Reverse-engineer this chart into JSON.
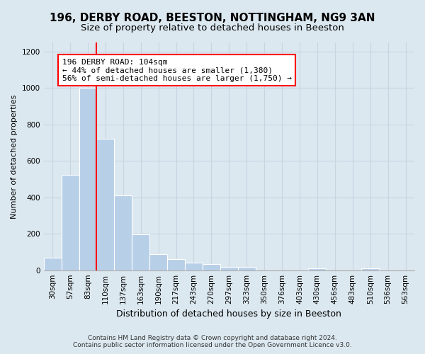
{
  "title1": "196, DERBY ROAD, BEESTON, NOTTINGHAM, NG9 3AN",
  "title2": "Size of property relative to detached houses in Beeston",
  "xlabel": "Distribution of detached houses by size in Beeston",
  "ylabel": "Number of detached properties",
  "categories": [
    "30sqm",
    "57sqm",
    "83sqm",
    "110sqm",
    "137sqm",
    "163sqm",
    "190sqm",
    "217sqm",
    "243sqm",
    "270sqm",
    "297sqm",
    "323sqm",
    "350sqm",
    "376sqm",
    "403sqm",
    "430sqm",
    "456sqm",
    "483sqm",
    "510sqm",
    "536sqm",
    "563sqm"
  ],
  "values": [
    68,
    525,
    1000,
    720,
    410,
    195,
    88,
    60,
    40,
    32,
    20,
    20,
    0,
    0,
    0,
    10,
    0,
    0,
    10,
    0,
    0
  ],
  "bar_color": "#b8cfe8",
  "bar_edgecolor": "#ffffff",
  "redline_color": "red",
  "annotation_text": "196 DERBY ROAD: 104sqm\n← 44% of detached houses are smaller (1,380)\n56% of semi-detached houses are larger (1,750) →",
  "annotation_box_color": "white",
  "annotation_box_edgecolor": "red",
  "ylim": [
    0,
    1250
  ],
  "yticks": [
    0,
    200,
    400,
    600,
    800,
    1000,
    1200
  ],
  "grid_color": "#c8d4e0",
  "bg_color": "#dce8f0",
  "footer": "Contains HM Land Registry data © Crown copyright and database right 2024.\nContains public sector information licensed under the Open Government Licence v3.0.",
  "title_fontsize": 11,
  "subtitle_fontsize": 9.5,
  "xlabel_fontsize": 9,
  "ylabel_fontsize": 8,
  "tick_fontsize": 7.5,
  "annotation_fontsize": 8,
  "footer_fontsize": 6.5
}
